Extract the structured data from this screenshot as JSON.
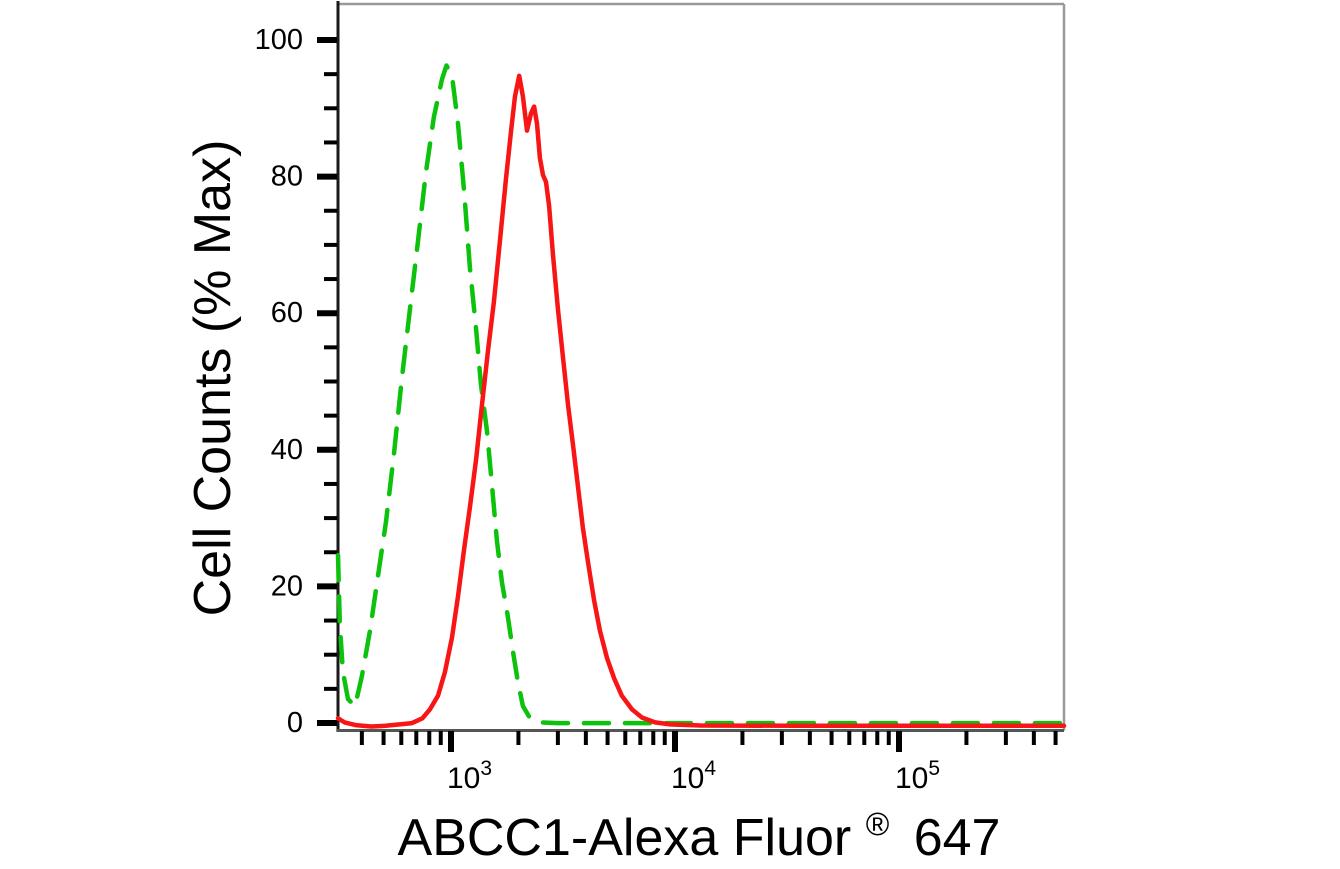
{
  "chart_data": {
    "type": "line",
    "chart_kind": "flow-cytometry-histogram-overlay",
    "title": "",
    "legend": "none",
    "grid": false,
    "x_axis": {
      "title_main": "ABCC1-Alexa Fluor",
      "title_registered": "®",
      "title_suffix": "647",
      "scale": "log10",
      "range": [
        313,
        545000
      ],
      "major_ticks": [
        {
          "value": 1000,
          "base": "10",
          "exponent": "3"
        },
        {
          "value": 10000,
          "base": "10",
          "exponent": "4"
        },
        {
          "value": 100000,
          "base": "10",
          "exponent": "5"
        }
      ],
      "minor_ticks": [
        400,
        500,
        600,
        700,
        800,
        900,
        2000,
        3000,
        4000,
        5000,
        6000,
        7000,
        8000,
        9000,
        20000,
        30000,
        40000,
        50000,
        60000,
        70000,
        80000,
        90000,
        200000,
        300000,
        400000,
        500000
      ]
    },
    "y_axis": {
      "title": "Cell Counts (% Max)",
      "range": [
        0,
        105
      ],
      "major_ticks": [
        0,
        20,
        40,
        60,
        80,
        100
      ],
      "minor_ticks": [
        5,
        10,
        15,
        25,
        30,
        35,
        45,
        50,
        55,
        65,
        70,
        75,
        85,
        90,
        95
      ]
    },
    "series": [
      {
        "id": "green-dashed-curve",
        "appearance": "dashed",
        "color": "#0dc20d",
        "points": [
          [
            313,
            25
          ],
          [
            319,
            15
          ],
          [
            329,
            8
          ],
          [
            347,
            4
          ],
          [
            373,
            3
          ],
          [
            401,
            7.5
          ],
          [
            435,
            14
          ],
          [
            472,
            22
          ],
          [
            513,
            30
          ],
          [
            557,
            40
          ],
          [
            604,
            51
          ],
          [
            656,
            61
          ],
          [
            713,
            71
          ],
          [
            773,
            81
          ],
          [
            839,
            89
          ],
          [
            912,
            94.5
          ],
          [
            955,
            96.5
          ],
          [
            1010,
            95
          ],
          [
            1075,
            88
          ],
          [
            1145,
            78
          ],
          [
            1215,
            67
          ],
          [
            1295,
            58
          ],
          [
            1360,
            50
          ],
          [
            1450,
            43
          ],
          [
            1525,
            35
          ],
          [
            1605,
            27
          ],
          [
            1690,
            21
          ],
          [
            1795,
            16
          ],
          [
            1890,
            11
          ],
          [
            1990,
            6.5
          ],
          [
            2095,
            3
          ],
          [
            2255,
            1.2
          ],
          [
            2495,
            0.6
          ],
          [
            3000,
            0.5
          ],
          [
            10000,
            0.5
          ],
          [
            100000,
            0.5
          ],
          [
            545000,
            0.5
          ]
        ]
      },
      {
        "id": "red-solid-curve",
        "appearance": "solid",
        "color": "#f81515",
        "points": [
          [
            313,
            1.2
          ],
          [
            335,
            0.6
          ],
          [
            375,
            0.2
          ],
          [
            440,
            0
          ],
          [
            510,
            0.1
          ],
          [
            590,
            0.3
          ],
          [
            670,
            0.5
          ],
          [
            745,
            1.2
          ],
          [
            805,
            2.5
          ],
          [
            875,
            4.5
          ],
          [
            940,
            8
          ],
          [
            1010,
            13
          ],
          [
            1075,
            19
          ],
          [
            1145,
            26
          ],
          [
            1215,
            32
          ],
          [
            1295,
            39
          ],
          [
            1375,
            47
          ],
          [
            1465,
            55
          ],
          [
            1555,
            62
          ],
          [
            1655,
            71
          ],
          [
            1760,
            80
          ],
          [
            1855,
            87
          ],
          [
            1930,
            92
          ],
          [
            2015,
            95
          ],
          [
            2095,
            92
          ],
          [
            2185,
            87
          ],
          [
            2275,
            89.5
          ],
          [
            2350,
            90.5
          ],
          [
            2420,
            88
          ],
          [
            2495,
            83
          ],
          [
            2575,
            80.5
          ],
          [
            2655,
            79.5
          ],
          [
            2740,
            76
          ],
          [
            2850,
            69
          ],
          [
            3000,
            61
          ],
          [
            3160,
            54
          ],
          [
            3330,
            47
          ],
          [
            3510,
            41
          ],
          [
            3690,
            35
          ],
          [
            3880,
            29
          ],
          [
            4090,
            24
          ],
          [
            4350,
            18.5
          ],
          [
            4620,
            14
          ],
          [
            4970,
            10
          ],
          [
            5350,
            7
          ],
          [
            5790,
            4.5
          ],
          [
            6430,
            2.5
          ],
          [
            7130,
            1.3
          ],
          [
            8150,
            0.6
          ],
          [
            9500,
            0.3
          ],
          [
            13000,
            0.15
          ],
          [
            36000,
            0.1
          ],
          [
            100000,
            0.1
          ],
          [
            280000,
            0.1
          ],
          [
            545000,
            0.1
          ]
        ]
      }
    ],
    "style": {
      "background": "#ffffff",
      "axis_color": "#333333",
      "frame_color": "#999999",
      "tick_color": "#000000",
      "text_color": "#000000"
    }
  }
}
